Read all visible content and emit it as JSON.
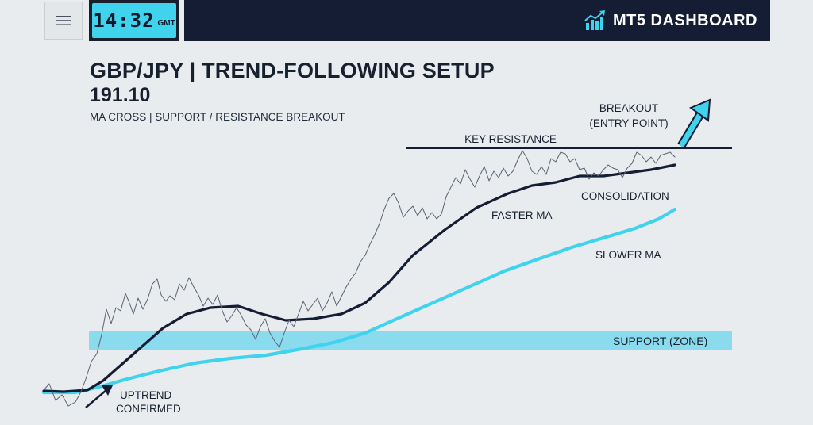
{
  "header": {
    "menu_icon": "hamburger-menu-icon",
    "clock_time": "14:32",
    "clock_zone": "GMT",
    "brand_icon": "bar-chart-trend-icon",
    "brand_name": "MT5 DASHBOARD"
  },
  "colors": {
    "navy": "#141d33",
    "cyan": "#3fd3ee",
    "price_line": "#5a6372",
    "support_zone": "#7fd9ec",
    "background": "#e9ecef"
  },
  "chart_data": {
    "type": "line",
    "title": "GBP/JPY | TREND-FOLLOWING SETUP",
    "price_label": "191.10",
    "subtitle": "MA CROSS | SUPPORT / RESISTANCE BREAKOUT",
    "grid": false,
    "legend": "none",
    "series": [
      {
        "name": "FASTER MA",
        "color": "#141d33",
        "points": [
          [
            55,
            493
          ],
          [
            80,
            494
          ],
          [
            110,
            492
          ],
          [
            130,
            480
          ],
          [
            155,
            458
          ],
          [
            180,
            436
          ],
          [
            205,
            414
          ],
          [
            235,
            396
          ],
          [
            265,
            388
          ],
          [
            300,
            386
          ],
          [
            330,
            396
          ],
          [
            360,
            404
          ],
          [
            395,
            402
          ],
          [
            430,
            396
          ],
          [
            460,
            382
          ],
          [
            490,
            356
          ],
          [
            520,
            322
          ],
          [
            560,
            290
          ],
          [
            600,
            262
          ],
          [
            640,
            244
          ],
          [
            670,
            234
          ],
          [
            700,
            230
          ],
          [
            730,
            222
          ],
          [
            760,
            222
          ],
          [
            790,
            218
          ],
          [
            820,
            214
          ],
          [
            850,
            208
          ]
        ]
      },
      {
        "name": "SLOWER MA",
        "color": "#3fd3ee",
        "points": [
          [
            55,
            495
          ],
          [
            95,
            495
          ],
          [
            125,
            488
          ],
          [
            160,
            478
          ],
          [
            200,
            468
          ],
          [
            245,
            458
          ],
          [
            290,
            452
          ],
          [
            335,
            448
          ],
          [
            380,
            440
          ],
          [
            420,
            432
          ],
          [
            460,
            420
          ],
          [
            500,
            402
          ],
          [
            545,
            382
          ],
          [
            590,
            362
          ],
          [
            635,
            342
          ],
          [
            680,
            326
          ],
          [
            720,
            312
          ],
          [
            760,
            300
          ],
          [
            800,
            288
          ],
          [
            830,
            276
          ],
          [
            850,
            264
          ]
        ]
      },
      {
        "name": "",
        "color": "#5a6372",
        "points": [
          [
            55,
            492
          ],
          [
            62,
            484
          ],
          [
            70,
            505
          ],
          [
            78,
            498
          ],
          [
            86,
            512
          ],
          [
            95,
            507
          ],
          [
            102,
            494
          ],
          [
            108,
            478
          ],
          [
            115,
            456
          ],
          [
            122,
            446
          ],
          [
            128,
            422
          ],
          [
            134,
            390
          ],
          [
            140,
            408
          ],
          [
            146,
            388
          ],
          [
            152,
            392
          ],
          [
            158,
            370
          ],
          [
            163,
            382
          ],
          [
            168,
            396
          ],
          [
            174,
            376
          ],
          [
            180,
            390
          ],
          [
            186,
            377
          ],
          [
            192,
            358
          ],
          [
            198,
            352
          ],
          [
            203,
            372
          ],
          [
            209,
            380
          ],
          [
            214,
            373
          ],
          [
            220,
            378
          ],
          [
            226,
            358
          ],
          [
            232,
            366
          ],
          [
            238,
            350
          ],
          [
            244,
            362
          ],
          [
            250,
            372
          ],
          [
            256,
            386
          ],
          [
            262,
            376
          ],
          [
            268,
            384
          ],
          [
            274,
            372
          ],
          [
            280,
            392
          ],
          [
            286,
            406
          ],
          [
            292,
            398
          ],
          [
            298,
            388
          ],
          [
            304,
            398
          ],
          [
            310,
            410
          ],
          [
            316,
            416
          ],
          [
            322,
            428
          ],
          [
            328,
            412
          ],
          [
            334,
            402
          ],
          [
            340,
            420
          ],
          [
            346,
            430
          ],
          [
            352,
            438
          ],
          [
            358,
            420
          ],
          [
            364,
            404
          ],
          [
            370,
            412
          ],
          [
            376,
            396
          ],
          [
            382,
            380
          ],
          [
            388,
            392
          ],
          [
            394,
            384
          ],
          [
            400,
            376
          ],
          [
            406,
            392
          ],
          [
            412,
            382
          ],
          [
            418,
            368
          ],
          [
            424,
            386
          ],
          [
            430,
            374
          ],
          [
            436,
            362
          ],
          [
            442,
            352
          ],
          [
            448,
            344
          ],
          [
            454,
            330
          ],
          [
            460,
            322
          ],
          [
            466,
            308
          ],
          [
            472,
            296
          ],
          [
            478,
            282
          ],
          [
            484,
            264
          ],
          [
            490,
            250
          ],
          [
            496,
            244
          ],
          [
            502,
            256
          ],
          [
            508,
            274
          ],
          [
            514,
            266
          ],
          [
            520,
            260
          ],
          [
            526,
            272
          ],
          [
            532,
            262
          ],
          [
            538,
            276
          ],
          [
            544,
            268
          ],
          [
            550,
            276
          ],
          [
            556,
            270
          ],
          [
            562,
            248
          ],
          [
            568,
            236
          ],
          [
            574,
            224
          ],
          [
            580,
            232
          ],
          [
            586,
            214
          ],
          [
            592,
            226
          ],
          [
            598,
            236
          ],
          [
            604,
            222
          ],
          [
            610,
            210
          ],
          [
            616,
            228
          ],
          [
            622,
            216
          ],
          [
            628,
            224
          ],
          [
            634,
            212
          ],
          [
            640,
            222
          ],
          [
            646,
            216
          ],
          [
            652,
            202
          ],
          [
            658,
            190
          ],
          [
            664,
            200
          ],
          [
            670,
            216
          ],
          [
            676,
            220
          ],
          [
            682,
            210
          ],
          [
            688,
            220
          ],
          [
            694,
            200
          ],
          [
            700,
            204
          ],
          [
            706,
            192
          ],
          [
            712,
            194
          ],
          [
            718,
            204
          ],
          [
            724,
            200
          ],
          [
            730,
            214
          ],
          [
            736,
            212
          ],
          [
            742,
            226
          ],
          [
            748,
            218
          ],
          [
            754,
            222
          ],
          [
            760,
            214
          ],
          [
            766,
            208
          ],
          [
            772,
            212
          ],
          [
            778,
            214
          ],
          [
            784,
            224
          ],
          [
            790,
            212
          ],
          [
            796,
            206
          ],
          [
            802,
            192
          ],
          [
            808,
            196
          ],
          [
            814,
            204
          ],
          [
            820,
            198
          ],
          [
            826,
            206
          ],
          [
            832,
            196
          ],
          [
            838,
            194
          ],
          [
            844,
            192
          ],
          [
            850,
            198
          ]
        ]
      }
    ],
    "zones": [
      {
        "name": "SUPPORT (ZONE)",
        "type": "horizontal-band"
      }
    ],
    "levels": [
      {
        "name": "KEY RESISTANCE",
        "type": "horizontal-line"
      }
    ],
    "annotations": [
      {
        "text": "BREAKOUT",
        "text2": "(ENTRY POINT)",
        "kind": "breakout"
      },
      {
        "text": "CONSOLIDATION",
        "kind": "label"
      },
      {
        "text": "FASTER MA",
        "kind": "label"
      },
      {
        "text": "SLOWER MA",
        "kind": "label"
      },
      {
        "text": "UPTREND",
        "text2": "CONFIRMED",
        "kind": "uptrend"
      }
    ]
  }
}
